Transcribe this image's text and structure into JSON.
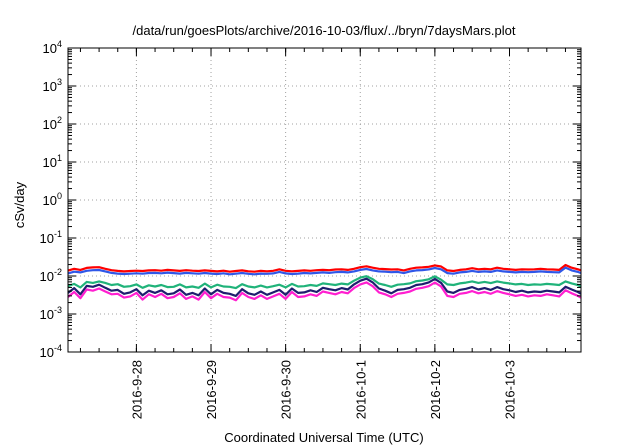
{
  "chart_data": {
    "type": "line",
    "title": "/data/run/goesPlots/archive/2016-10-03/flux/../bryn/7daysMars.plot",
    "xlabel": "Coordinated Universal Time (UTC)",
    "ylabel": "cSv/day",
    "yscale": "log",
    "ylim": [
      0.0001,
      10000
    ],
    "y_ticks": [
      {
        "value": 0.0001,
        "base": "10",
        "exp": "-4"
      },
      {
        "value": 0.001,
        "base": "10",
        "exp": "-3"
      },
      {
        "value": 0.01,
        "base": "10",
        "exp": "-2"
      },
      {
        "value": 0.1,
        "base": "10",
        "exp": "-1"
      },
      {
        "value": 1,
        "base": "10",
        "exp": "0"
      },
      {
        "value": 10,
        "base": "10",
        "exp": "1"
      },
      {
        "value": 100,
        "base": "10",
        "exp": "2"
      },
      {
        "value": 1000,
        "base": "10",
        "exp": "3"
      },
      {
        "value": 10000,
        "base": "10",
        "exp": "4"
      }
    ],
    "xlim": [
      "2016-09-27T02:00Z",
      "2016-10-03T23:00Z"
    ],
    "x_ticks": [
      {
        "value": "2016-09-28T00:00Z",
        "label": "2016-9-28"
      },
      {
        "value": "2016-09-29T00:00Z",
        "label": "2016-9-29"
      },
      {
        "value": "2016-09-30T00:00Z",
        "label": "2016-9-30"
      },
      {
        "value": "2016-10-01T00:00Z",
        "label": "2016-10-1"
      },
      {
        "value": "2016-10-02T00:00Z",
        "label": "2016-10-2"
      },
      {
        "value": "2016-10-03T00:00Z",
        "label": "2016-10-3"
      }
    ],
    "grid": true,
    "x": [
      "2016-09-27T02:00Z",
      "2016-09-27T04:00Z",
      "2016-09-27T06:00Z",
      "2016-09-27T08:00Z",
      "2016-09-27T10:00Z",
      "2016-09-27T12:00Z",
      "2016-09-27T14:00Z",
      "2016-09-27T16:00Z",
      "2016-09-27T18:00Z",
      "2016-09-27T20:00Z",
      "2016-09-27T22:00Z",
      "2016-09-28T00:00Z",
      "2016-09-28T02:00Z",
      "2016-09-28T04:00Z",
      "2016-09-28T06:00Z",
      "2016-09-28T08:00Z",
      "2016-09-28T10:00Z",
      "2016-09-28T12:00Z",
      "2016-09-28T14:00Z",
      "2016-09-28T16:00Z",
      "2016-09-28T18:00Z",
      "2016-09-28T20:00Z",
      "2016-09-28T22:00Z",
      "2016-09-29T00:00Z",
      "2016-09-29T02:00Z",
      "2016-09-29T04:00Z",
      "2016-09-29T06:00Z",
      "2016-09-29T08:00Z",
      "2016-09-29T10:00Z",
      "2016-09-29T12:00Z",
      "2016-09-29T14:00Z",
      "2016-09-29T16:00Z",
      "2016-09-29T18:00Z",
      "2016-09-29T20:00Z",
      "2016-09-29T22:00Z",
      "2016-09-30T00:00Z",
      "2016-09-30T02:00Z",
      "2016-09-30T04:00Z",
      "2016-09-30T06:00Z",
      "2016-09-30T08:00Z",
      "2016-09-30T10:00Z",
      "2016-09-30T12:00Z",
      "2016-09-30T14:00Z",
      "2016-09-30T16:00Z",
      "2016-09-30T18:00Z",
      "2016-09-30T20:00Z",
      "2016-09-30T22:00Z",
      "2016-10-01T00:00Z",
      "2016-10-01T02:00Z",
      "2016-10-01T04:00Z",
      "2016-10-01T06:00Z",
      "2016-10-01T08:00Z",
      "2016-10-01T10:00Z",
      "2016-10-01T12:00Z",
      "2016-10-01T14:00Z",
      "2016-10-01T16:00Z",
      "2016-10-01T18:00Z",
      "2016-10-01T20:00Z",
      "2016-10-01T22:00Z",
      "2016-10-02T00:00Z",
      "2016-10-02T02:00Z",
      "2016-10-02T04:00Z",
      "2016-10-02T06:00Z",
      "2016-10-02T08:00Z",
      "2016-10-02T10:00Z",
      "2016-10-02T12:00Z",
      "2016-10-02T14:00Z",
      "2016-10-02T16:00Z",
      "2016-10-02T18:00Z",
      "2016-10-02T20:00Z",
      "2016-10-02T22:00Z",
      "2016-10-03T00:00Z",
      "2016-10-03T02:00Z",
      "2016-10-03T04:00Z",
      "2016-10-03T06:00Z",
      "2016-10-03T08:00Z",
      "2016-10-03T10:00Z",
      "2016-10-03T12:00Z",
      "2016-10-03T14:00Z",
      "2016-10-03T16:00Z",
      "2016-10-03T18:00Z",
      "2016-10-03T20:00Z",
      "2016-10-03T22:00Z",
      "2016-10-03T23:00Z"
    ],
    "series": [
      {
        "color": "#ff0000",
        "values": [
          0.0139,
          0.0155,
          0.0145,
          0.0163,
          0.0168,
          0.017,
          0.0155,
          0.0142,
          0.0136,
          0.0132,
          0.0135,
          0.0138,
          0.0135,
          0.014,
          0.0142,
          0.0138,
          0.0145,
          0.014,
          0.0136,
          0.0142,
          0.0138,
          0.0135,
          0.014,
          0.0136,
          0.0132,
          0.0138,
          0.013,
          0.0135,
          0.014,
          0.0133,
          0.013,
          0.0136,
          0.0133,
          0.0137,
          0.015,
          0.0137,
          0.0133,
          0.0136,
          0.014,
          0.0137,
          0.0142,
          0.0145,
          0.0142,
          0.0148,
          0.015,
          0.0145,
          0.0155,
          0.017,
          0.018,
          0.0165,
          0.0155,
          0.0152,
          0.0148,
          0.015,
          0.014,
          0.0155,
          0.0165,
          0.0168,
          0.0175,
          0.019,
          0.0178,
          0.014,
          0.0135,
          0.0145,
          0.015,
          0.016,
          0.015,
          0.0155,
          0.015,
          0.0165,
          0.0155,
          0.015,
          0.0145,
          0.015,
          0.0148,
          0.015,
          0.0155,
          0.015,
          0.0148,
          0.0145,
          0.0195,
          0.0165,
          0.015,
          0.014
        ]
      },
      {
        "color": "#2f57e8",
        "values": [
          0.0117,
          0.013,
          0.0124,
          0.0137,
          0.0142,
          0.0144,
          0.0132,
          0.0121,
          0.0116,
          0.0113,
          0.0115,
          0.0118,
          0.0115,
          0.012,
          0.0121,
          0.0118,
          0.0123,
          0.0119,
          0.0116,
          0.0121,
          0.0118,
          0.0115,
          0.012,
          0.0116,
          0.0113,
          0.0118,
          0.0111,
          0.0115,
          0.012,
          0.0114,
          0.0111,
          0.0116,
          0.0114,
          0.0117,
          0.0128,
          0.0117,
          0.0113,
          0.0116,
          0.012,
          0.0117,
          0.0121,
          0.0124,
          0.0121,
          0.0126,
          0.0128,
          0.0124,
          0.0132,
          0.0145,
          0.0153,
          0.014,
          0.0132,
          0.013,
          0.0126,
          0.0128,
          0.0119,
          0.0132,
          0.014,
          0.0143,
          0.0149,
          0.0162,
          0.015,
          0.0119,
          0.0115,
          0.0124,
          0.0128,
          0.0136,
          0.0128,
          0.0132,
          0.0128,
          0.014,
          0.0132,
          0.0128,
          0.0124,
          0.0128,
          0.0126,
          0.0128,
          0.0132,
          0.0128,
          0.0126,
          0.0124,
          0.0166,
          0.014,
          0.0128,
          0.0119
        ]
      },
      {
        "color": "#20b37a",
        "values": [
          0.0054,
          0.0062,
          0.005,
          0.007,
          0.0066,
          0.0072,
          0.0066,
          0.0058,
          0.0061,
          0.0052,
          0.0054,
          0.006,
          0.0049,
          0.0057,
          0.0053,
          0.0058,
          0.0051,
          0.0052,
          0.006,
          0.005,
          0.0053,
          0.0049,
          0.0063,
          0.005,
          0.0059,
          0.0053,
          0.0052,
          0.0048,
          0.0061,
          0.0053,
          0.005,
          0.0056,
          0.005,
          0.0054,
          0.0059,
          0.005,
          0.0062,
          0.0053,
          0.0054,
          0.0058,
          0.0055,
          0.0064,
          0.0061,
          0.0058,
          0.0063,
          0.006,
          0.0075,
          0.0091,
          0.0099,
          0.0083,
          0.0063,
          0.0058,
          0.0052,
          0.0059,
          0.0061,
          0.0064,
          0.0073,
          0.0076,
          0.0082,
          0.0098,
          0.008,
          0.006,
          0.0058,
          0.0064,
          0.0067,
          0.0072,
          0.0066,
          0.007,
          0.0065,
          0.0072,
          0.0067,
          0.0064,
          0.006,
          0.0062,
          0.0058,
          0.006,
          0.0059,
          0.0062,
          0.006,
          0.0058,
          0.0072,
          0.0064,
          0.0058,
          0.0052
        ]
      },
      {
        "color": "#1e1e6e",
        "values": [
          0.0036,
          0.0048,
          0.0033,
          0.0055,
          0.0052,
          0.0059,
          0.0049,
          0.0041,
          0.0043,
          0.0034,
          0.0037,
          0.0045,
          0.0031,
          0.0041,
          0.0036,
          0.0042,
          0.0033,
          0.0035,
          0.0044,
          0.0032,
          0.0036,
          0.0031,
          0.0047,
          0.0033,
          0.0043,
          0.0036,
          0.0034,
          0.003,
          0.0045,
          0.0035,
          0.0032,
          0.0039,
          0.0032,
          0.0037,
          0.0043,
          0.0032,
          0.0047,
          0.0036,
          0.0037,
          0.0042,
          0.0038,
          0.0049,
          0.0045,
          0.0042,
          0.0048,
          0.0044,
          0.006,
          0.0075,
          0.0085,
          0.0068,
          0.0047,
          0.0041,
          0.0035,
          0.0043,
          0.0045,
          0.0049,
          0.0058,
          0.0061,
          0.0068,
          0.0084,
          0.0066,
          0.0039,
          0.0036,
          0.0043,
          0.0046,
          0.0051,
          0.0044,
          0.0048,
          0.0043,
          0.0051,
          0.0045,
          0.0042,
          0.0038,
          0.0041,
          0.0037,
          0.0039,
          0.0038,
          0.0041,
          0.0039,
          0.0037,
          0.0052,
          0.0044,
          0.0038,
          0.0034
        ]
      },
      {
        "color": "#ff1fd0",
        "values": [
          0.0028,
          0.0038,
          0.0026,
          0.0044,
          0.0041,
          0.0047,
          0.0039,
          0.0033,
          0.0034,
          0.0027,
          0.0029,
          0.0036,
          0.0024,
          0.0033,
          0.0028,
          0.0034,
          0.0026,
          0.0028,
          0.0035,
          0.0025,
          0.0029,
          0.0024,
          0.0038,
          0.0026,
          0.0034,
          0.0028,
          0.0027,
          0.0023,
          0.0036,
          0.0028,
          0.0025,
          0.0031,
          0.0025,
          0.0029,
          0.0034,
          0.0025,
          0.0038,
          0.0028,
          0.0029,
          0.0033,
          0.003,
          0.0039,
          0.0036,
          0.0033,
          0.0038,
          0.0035,
          0.0048,
          0.006,
          0.0068,
          0.0054,
          0.0037,
          0.0033,
          0.0028,
          0.0034,
          0.0036,
          0.0039,
          0.0046,
          0.0049,
          0.0054,
          0.0067,
          0.0053,
          0.003,
          0.0028,
          0.0034,
          0.0036,
          0.004,
          0.0035,
          0.0038,
          0.0034,
          0.004,
          0.0036,
          0.0033,
          0.003,
          0.0032,
          0.0029,
          0.0031,
          0.003,
          0.0033,
          0.0031,
          0.0029,
          0.0042,
          0.0035,
          0.003,
          0.0027
        ]
      }
    ]
  }
}
